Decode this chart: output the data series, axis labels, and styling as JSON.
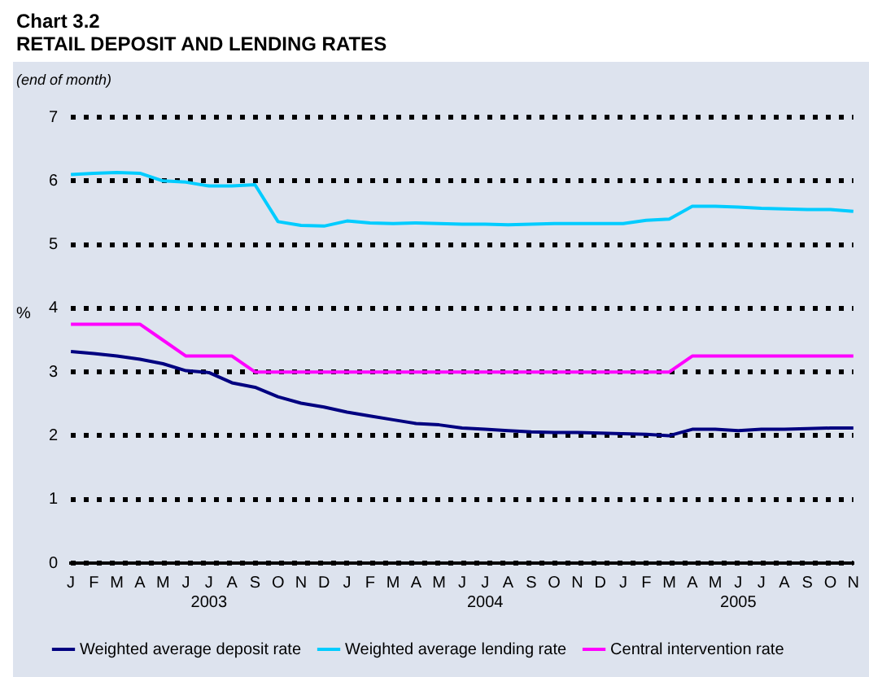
{
  "chart_data": {
    "type": "line",
    "title": "Chart 3.2\nRETAIL DEPOSIT AND LENDING RATES",
    "subtitle": "(end of month)",
    "ylabel": "%",
    "categories": [
      "J",
      "F",
      "M",
      "A",
      "M",
      "J",
      "J\n2003",
      "A",
      "S",
      "O",
      "N",
      "D",
      "J",
      "F",
      "M",
      "A",
      "M",
      "J",
      "J\n2004",
      "A",
      "S",
      "O",
      "N",
      "D",
      "J",
      "F",
      "M",
      "A",
      "M",
      "J\n2005",
      "J",
      "A",
      "S",
      "O",
      "N"
    ],
    "series": [
      {
        "name": "Weighted average deposit rate",
        "color": "#000080",
        "values": [
          3.32,
          3.29,
          3.25,
          3.2,
          3.13,
          3.02,
          2.99,
          2.83,
          2.76,
          2.61,
          2.51,
          2.45,
          2.37,
          2.31,
          2.25,
          2.19,
          2.17,
          2.12,
          2.1,
          2.08,
          2.06,
          2.05,
          2.05,
          2.04,
          2.03,
          2.02,
          2.0,
          2.1,
          2.1,
          2.08,
          2.1,
          2.1,
          2.11,
          2.12,
          2.12
        ]
      },
      {
        "name": "Weighted average lending rate",
        "color": "#00ccff",
        "values": [
          6.1,
          6.12,
          6.13,
          6.12,
          6.0,
          5.98,
          5.92,
          5.92,
          5.94,
          5.36,
          5.3,
          5.29,
          5.37,
          5.34,
          5.33,
          5.34,
          5.33,
          5.32,
          5.32,
          5.31,
          5.32,
          5.33,
          5.33,
          5.33,
          5.33,
          5.38,
          5.4,
          5.6,
          5.6,
          5.59,
          5.57,
          5.56,
          5.55,
          5.55,
          5.52
        ]
      },
      {
        "name": "Central intervention rate",
        "color": "#ff00ff",
        "values": [
          3.75,
          3.75,
          3.75,
          3.75,
          3.5,
          3.25,
          3.25,
          3.25,
          3.0,
          3.0,
          3.0,
          3.0,
          3.0,
          3.0,
          3.0,
          3.0,
          3.0,
          3.0,
          3.0,
          3.0,
          3.0,
          3.0,
          3.0,
          3.0,
          3.0,
          3.0,
          3.0,
          3.25,
          3.25,
          3.25,
          3.25,
          3.25,
          3.25,
          3.25,
          3.25
        ]
      }
    ],
    "ylim": [
      0,
      7
    ],
    "yticks": [
      0,
      1,
      2,
      3,
      4,
      5,
      6,
      7
    ],
    "grid": "y",
    "legend": "bottom",
    "marker": "none",
    "line_style": "solid"
  }
}
